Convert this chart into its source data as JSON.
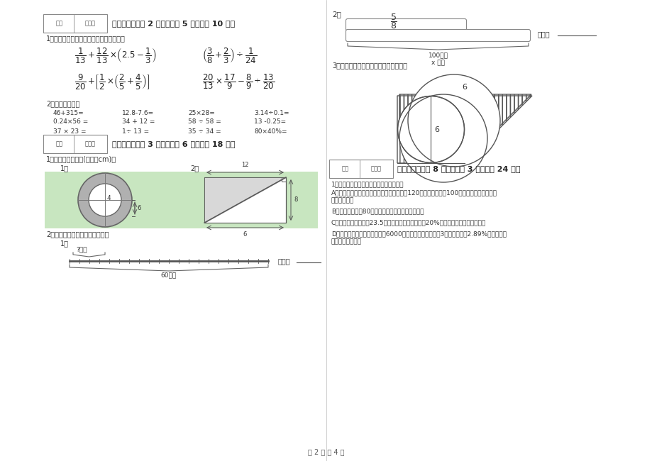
{
  "bg_color": "#ffffff",
  "green_bg": "#c8e6c0",
  "section4_header": "四、计算题（共 2 小题，每题 5 分，共计 10 分）",
  "section4_sub1": "1、脱式计算，能简便计算的要简便计算。",
  "section4_sub2": "2、直接写得数。",
  "direct_calc": [
    [
      "46+315=",
      "12.8-7.6=",
      "25×28=",
      "3.14÷0.1="
    ],
    [
      "0.24×56 =",
      "34 + 12 =",
      "58 ÷ 58 =",
      "13 -0.25="
    ],
    [
      "37 × 23 =",
      "1÷ 13 =",
      "35 ÷ 34 =",
      "80×40%="
    ]
  ],
  "section5_header": "五、综合题（共 3 小题，每题 6 分，共计 18 分）",
  "section5_sub1": "1、求阴影部分面积(单位：cm)。",
  "section5_sub2": "2、看图列算式或方程，不计算：",
  "section6_header": "六、应用题（共 8 小题，每题 3 分，共计 24 分）",
  "app1": "1、下面各题，只列出综合算式，不解答。",
  "appA_1": "A、六一儿童节，同学们做纸花，六年级做了120朵，五年级做了100朵，六年级比五年级多",
  "appA_2": "做百分之几？",
  "appB": "B、六年级有男生80人，比女生多，女生有多少人？",
  "appC": "C、王庄去年总产值为23.5万元，今年比去年增加了20%，今年的产值是多少万元？",
  "appD_1": "D、小林的妈妈在农业银行买了6000元国家建设债券，定期3年，年利率为2.89%，到期能可",
  "appD_2": "获得利息多少元？",
  "footer": "第 2 页 共 4 页",
  "score_box_text": "得分",
  "reviewer_text": "评卷人",
  "lieši": "列式：",
  "qianjke": "?千克",
  "liushiqianjke": "60千克",
  "qianmi": "x 千米",
  "yibai_qianmi": "100千米",
  "section3_right": "3、求阴影部分的面积（单位：厘米）。"
}
